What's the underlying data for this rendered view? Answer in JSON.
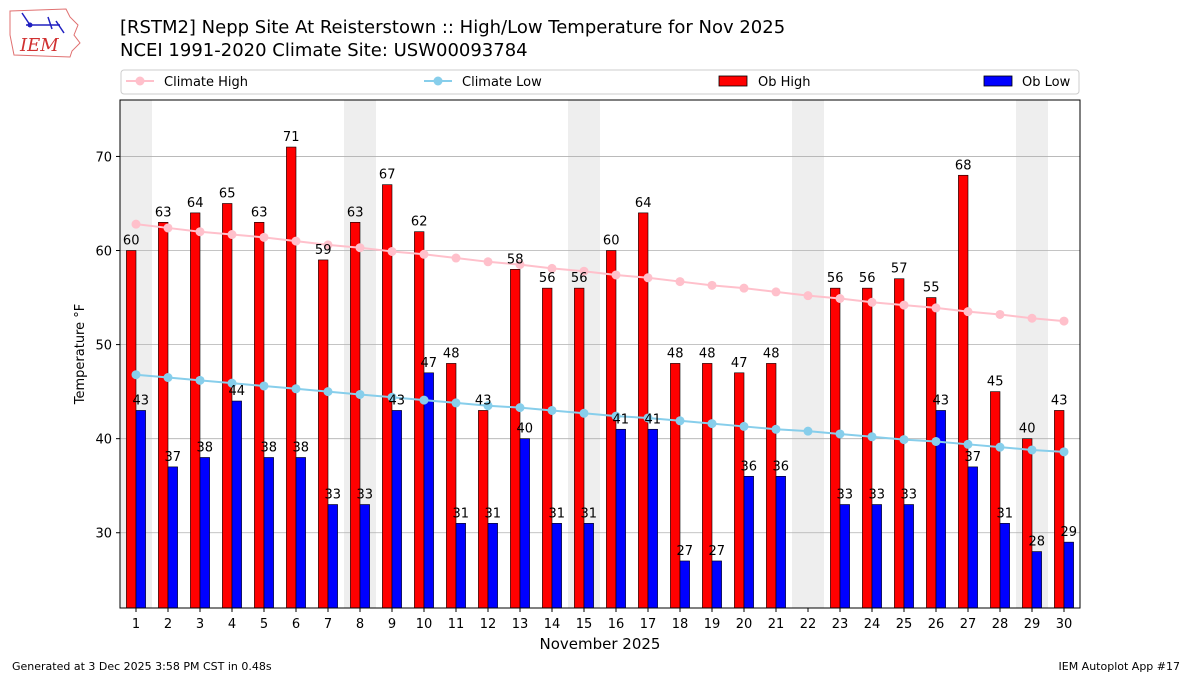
{
  "title_line1": "[RSTM2] Nepp Site At Reisterstown :: High/Low Temperature for Nov 2025",
  "title_line2": "NCEI 1991-2020 Climate Site: USW00093784",
  "logo_text": "IEM",
  "footer_left": "Generated at 3 Dec 2025 3:58 PM CST in 0.48s",
  "footer_right": "IEM Autoplot App #17",
  "colors": {
    "ob_high": "#ff0000",
    "ob_low": "#0000ff",
    "climate_high": "#ffc0cb",
    "climate_low": "#87ceeb",
    "weekend_shade": "#eeeeee"
  },
  "chart_data": {
    "type": "bar",
    "xlabel": "November 2025",
    "ylabel": "Temperature °F",
    "ylim": [
      22,
      76
    ],
    "yticks": [
      30,
      40,
      50,
      60,
      70
    ],
    "grid": true,
    "legend_position": "top",
    "categories": [
      "1",
      "2",
      "3",
      "4",
      "5",
      "6",
      "7",
      "8",
      "9",
      "10",
      "11",
      "12",
      "13",
      "14",
      "15",
      "16",
      "17",
      "18",
      "19",
      "20",
      "21",
      "22",
      "23",
      "24",
      "25",
      "26",
      "27",
      "28",
      "29",
      "30"
    ],
    "shaded_days": [
      1,
      8,
      15,
      22,
      29
    ],
    "series": [
      {
        "name": "Ob High",
        "kind": "bar",
        "values": [
          60,
          63,
          64,
          65,
          63,
          71,
          59,
          63,
          67,
          62,
          48,
          43,
          58,
          56,
          56,
          60,
          64,
          48,
          48,
          47,
          48,
          null,
          56,
          56,
          57,
          55,
          68,
          45,
          40,
          43
        ]
      },
      {
        "name": "Ob Low",
        "kind": "bar",
        "values": [
          43,
          37,
          38,
          44,
          38,
          38,
          33,
          33,
          43,
          47,
          31,
          31,
          40,
          31,
          31,
          41,
          41,
          27,
          27,
          36,
          36,
          null,
          33,
          33,
          33,
          43,
          37,
          31,
          28,
          29
        ]
      },
      {
        "name": "Climate High",
        "kind": "line",
        "values": [
          62.8,
          62.4,
          62.0,
          61.7,
          61.4,
          61.0,
          60.6,
          60.3,
          59.9,
          59.6,
          59.2,
          58.8,
          58.5,
          58.1,
          57.8,
          57.4,
          57.1,
          56.7,
          56.3,
          56.0,
          55.6,
          55.2,
          54.9,
          54.5,
          54.2,
          53.9,
          53.5,
          53.2,
          52.8,
          52.5
        ]
      },
      {
        "name": "Climate Low",
        "kind": "line",
        "values": [
          46.8,
          46.5,
          46.2,
          45.9,
          45.6,
          45.3,
          45.0,
          44.7,
          44.4,
          44.1,
          43.8,
          43.5,
          43.3,
          43.0,
          42.7,
          42.4,
          42.2,
          41.9,
          41.6,
          41.3,
          41.0,
          40.8,
          40.5,
          40.2,
          39.9,
          39.7,
          39.4,
          39.1,
          38.8,
          38.6
        ]
      }
    ]
  }
}
